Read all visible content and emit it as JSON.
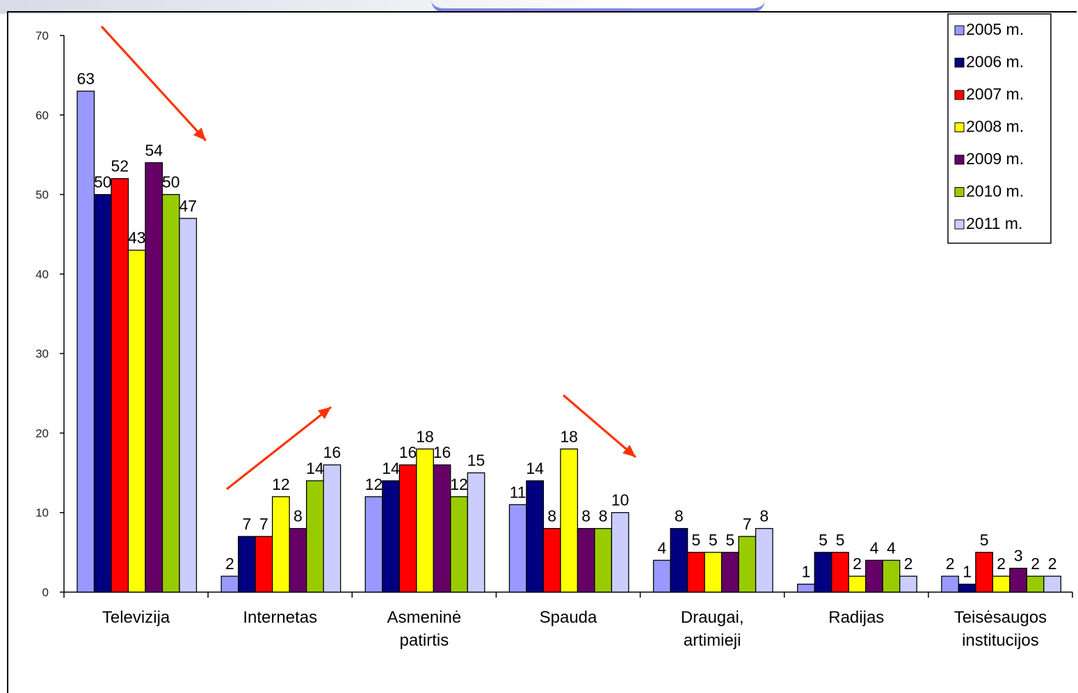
{
  "chart_data": {
    "type": "bar",
    "title": "",
    "xlabel": "",
    "ylabel": "",
    "ylim": [
      0,
      70
    ],
    "yticks": [
      0,
      10,
      20,
      30,
      40,
      50,
      60,
      70
    ],
    "grid": false,
    "legend_position": "top-right",
    "categories": [
      [
        "Televizija"
      ],
      [
        "Internetas"
      ],
      [
        "Asmeninė",
        "patirtis"
      ],
      [
        "Spauda"
      ],
      [
        "Draugai,",
        "artimieji"
      ],
      [
        "Radijas"
      ],
      [
        "Teisėsaugos",
        "institucijos"
      ]
    ],
    "series": [
      {
        "name": "2005 m.",
        "color": "#9999ff",
        "values": [
          63,
          2,
          12,
          11,
          4,
          1,
          2
        ]
      },
      {
        "name": "2006 m.",
        "color": "#000080",
        "values": [
          50,
          7,
          14,
          14,
          8,
          5,
          1
        ]
      },
      {
        "name": "2007 m.",
        "color": "#ff0000",
        "values": [
          52,
          7,
          16,
          8,
          5,
          5,
          5
        ]
      },
      {
        "name": "2008 m.",
        "color": "#ffff00",
        "values": [
          43,
          12,
          18,
          18,
          5,
          2,
          2
        ]
      },
      {
        "name": "2009 m.",
        "color": "#660066",
        "values": [
          54,
          8,
          16,
          8,
          5,
          4,
          3
        ]
      },
      {
        "name": "2010 m.",
        "color": "#99cc00",
        "values": [
          50,
          14,
          12,
          8,
          7,
          4,
          2
        ]
      },
      {
        "name": "2011 m.",
        "color": "#ccccff",
        "values": [
          47,
          16,
          15,
          10,
          8,
          2,
          2
        ]
      }
    ],
    "annotations": [
      {
        "type": "arrow",
        "direction": "down",
        "color": "#ff3300",
        "near_category": "Televizija"
      },
      {
        "type": "arrow",
        "direction": "up",
        "color": "#ff3300",
        "near_category": "Internetas"
      },
      {
        "type": "arrow",
        "direction": "down",
        "color": "#ff3300",
        "near_category": "Spauda"
      }
    ]
  }
}
